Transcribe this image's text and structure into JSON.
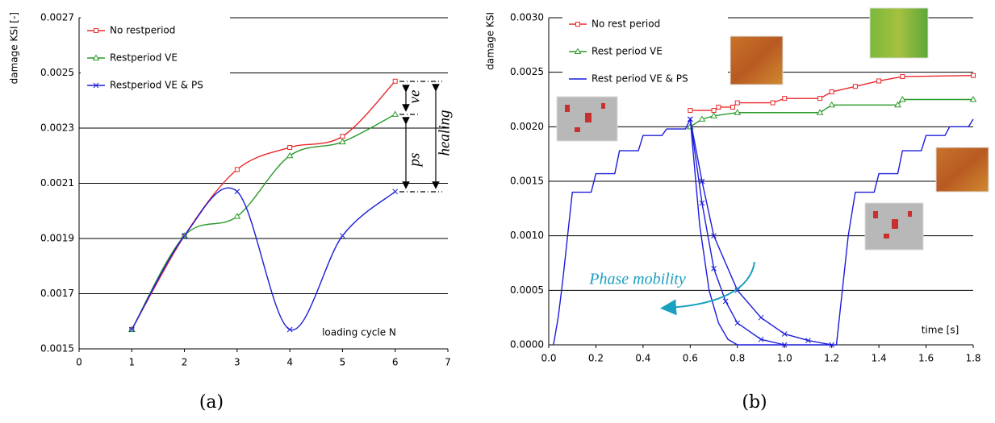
{
  "chart_data": [
    {
      "type": "line",
      "smooth": true,
      "ylabel": "damage KSI [-]",
      "xlabel": "loading cycle N",
      "caption": "(a)",
      "x": [
        1,
        2,
        3,
        4,
        5,
        6
      ],
      "xlim": [
        0,
        7
      ],
      "xticks": [
        0,
        1,
        2,
        3,
        4,
        5,
        6,
        7
      ],
      "ylim": [
        0.0015,
        0.0027
      ],
      "yticks": [
        0.0015,
        0.0017,
        0.0019,
        0.0021,
        0.0023,
        0.0025,
        0.0027
      ],
      "grid": true,
      "legend": "upper left",
      "annotations": [
        "ve",
        "ps",
        "healing"
      ],
      "series": [
        {
          "name": "No restperiod",
          "color": "#e8282a",
          "marker": "square",
          "values": [
            0.00157,
            0.00191,
            0.00215,
            0.00223,
            0.00227,
            0.00247
          ]
        },
        {
          "name": "Restperiod VE",
          "color": "#2a9a2a",
          "marker": "triangle",
          "values": [
            0.00157,
            0.00191,
            0.00198,
            0.0022,
            0.00225,
            0.00235
          ]
        },
        {
          "name": "Restperiod VE & PS",
          "color": "#1c1cdc",
          "marker": "x",
          "values": [
            0.00157,
            0.00191,
            0.00207,
            0.00157,
            0.00191,
            0.00207
          ]
        }
      ]
    },
    {
      "type": "line",
      "smooth": false,
      "ylabel": "damage KSI",
      "xlabel": "time [s]",
      "caption": "(b)",
      "xlim": [
        0,
        1.8
      ],
      "xticks": [
        {
          "value": 0,
          "label": "0.0"
        },
        {
          "value": 0.2,
          "label": "0.2"
        },
        {
          "value": 0.4,
          "label": "0.4"
        },
        {
          "value": 0.6,
          "label": "0.6"
        },
        {
          "value": 0.8,
          "label": "0.8"
        },
        {
          "value": 1,
          "label": "1.0"
        },
        {
          "value": 1.2,
          "label": "1.2"
        },
        {
          "value": 1.4,
          "label": "1.4"
        },
        {
          "value": 1.6,
          "label": "1.6"
        },
        {
          "value": 1.8,
          "label": "1.8"
        }
      ],
      "ylim": [
        0,
        0.003
      ],
      "yticks": [
        {
          "value": 0,
          "label": "0.0000"
        },
        {
          "value": 0.0005,
          "label": "0.0005"
        },
        {
          "value": 0.001,
          "label": "0.0010"
        },
        {
          "value": 0.0015,
          "label": "0.0015"
        },
        {
          "value": 0.002,
          "label": "0.0020"
        },
        {
          "value": 0.0025,
          "label": "0.0025"
        },
        {
          "value": 0.003,
          "label": "0.0030"
        }
      ],
      "grid": true,
      "legend": "upper left",
      "annotations": [
        "Phase mobility"
      ],
      "series": [
        {
          "name": "No rest period",
          "color": "#e8282a",
          "marker": "square",
          "x": [
            0.6,
            0.7,
            0.72,
            0.78,
            0.8,
            0.95,
            1.0,
            1.15,
            1.2,
            1.3,
            1.4,
            1.5,
            1.8
          ],
          "values": [
            0.00215,
            0.00215,
            0.00218,
            0.00218,
            0.00222,
            0.00222,
            0.00226,
            0.00226,
            0.00232,
            0.00237,
            0.00242,
            0.00246,
            0.00247
          ]
        },
        {
          "name": "Rest period VE",
          "color": "#2a9a2a",
          "marker": "triangle",
          "x": [
            0.6,
            0.65,
            0.7,
            0.8,
            1.15,
            1.2,
            1.48,
            1.5,
            1.8
          ],
          "values": [
            0.002,
            0.00207,
            0.0021,
            0.00213,
            0.00213,
            0.0022,
            0.0022,
            0.00225,
            0.00225
          ]
        },
        {
          "name": "Rest period VE & PS",
          "color": "#1c1cdc",
          "marker": "none",
          "x": [
            0.02,
            0.04,
            0.06,
            0.08,
            0.1,
            0.18,
            0.2,
            0.28,
            0.3,
            0.38,
            0.4,
            0.48,
            0.5,
            0.58,
            0.6,
            0.64,
            0.68,
            0.72,
            0.76,
            0.8,
            1.22,
            1.25,
            1.27,
            1.3,
            1.38,
            1.4,
            1.48,
            1.5,
            1.58,
            1.6,
            1.68,
            1.7,
            1.78,
            1.8
          ],
          "values": [
            0,
            0.00025,
            0.0006,
            0.001,
            0.0014,
            0.0014,
            0.00157,
            0.00157,
            0.00178,
            0.00178,
            0.00192,
            0.00192,
            0.00198,
            0.00198,
            0.00207,
            0.0011,
            0.0005,
            0.0002,
            5e-05,
            0,
            0,
            0.0006,
            0.001,
            0.0014,
            0.0014,
            0.00157,
            0.00157,
            0.00178,
            0.00178,
            0.00192,
            0.00192,
            0.002,
            0.002,
            0.00207
          ]
        },
        {
          "color": "#1c1cdc",
          "marker": "x",
          "x": [
            0.6,
            0.65,
            0.7,
            0.75,
            0.8,
            0.9,
            1.0
          ],
          "values": [
            0.00207,
            0.0013,
            0.0007,
            0.0004,
            0.0002,
            5e-05,
            0
          ]
        },
        {
          "color": "#1c1cdc",
          "marker": "x",
          "x": [
            0.6,
            0.65,
            0.7,
            0.8,
            0.9,
            1.0,
            1.1,
            1.2
          ],
          "values": [
            0.00207,
            0.0015,
            0.001,
            0.0005,
            0.00025,
            0.0001,
            4e-05,
            0
          ]
        }
      ]
    }
  ]
}
